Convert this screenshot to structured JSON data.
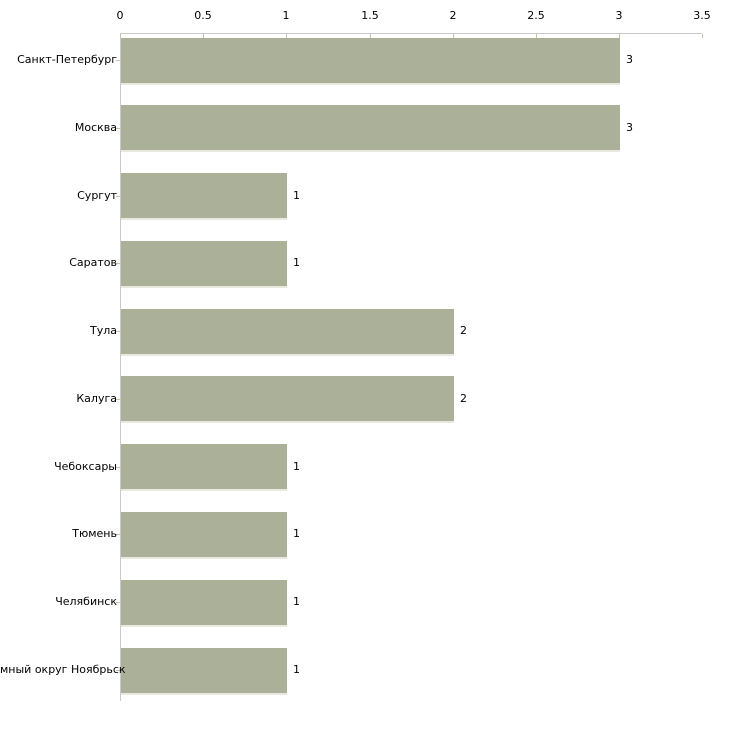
{
  "chart_data": {
    "type": "bar",
    "orientation": "horizontal",
    "title": "",
    "xlabel": "",
    "ylabel": "",
    "categories": [
      "Санкт-Петербург",
      "Москва",
      "Сургут",
      "Саратов",
      "Тула",
      "Калуга",
      "Чебоксары",
      "Тюмень",
      "Челябинск",
      "мный округ Ноябрьск"
    ],
    "values": [
      3,
      3,
      1,
      1,
      2,
      2,
      1,
      1,
      1,
      1
    ],
    "value_labels": [
      "3",
      "3",
      "1",
      "1",
      "2",
      "2",
      "1",
      "1",
      "1",
      "1"
    ],
    "xlim": [
      0,
      3.5
    ],
    "xtick_values": [
      0,
      0.5,
      1,
      1.5,
      2,
      2.5,
      3,
      3.5
    ],
    "xtick_labels": [
      "0",
      "0.5",
      "1",
      "1.5",
      "2",
      "2.5",
      "3",
      "3.5"
    ],
    "axis_position": "top",
    "grid": false,
    "legend": false,
    "colors": {
      "bar_fill": "#abb198",
      "bar_bottom_edge": "#e9e9df",
      "axis_line": "#c9c9c9",
      "tick_mark": "#c6c8a4",
      "text": "#000000",
      "background": "#ffffff"
    }
  }
}
